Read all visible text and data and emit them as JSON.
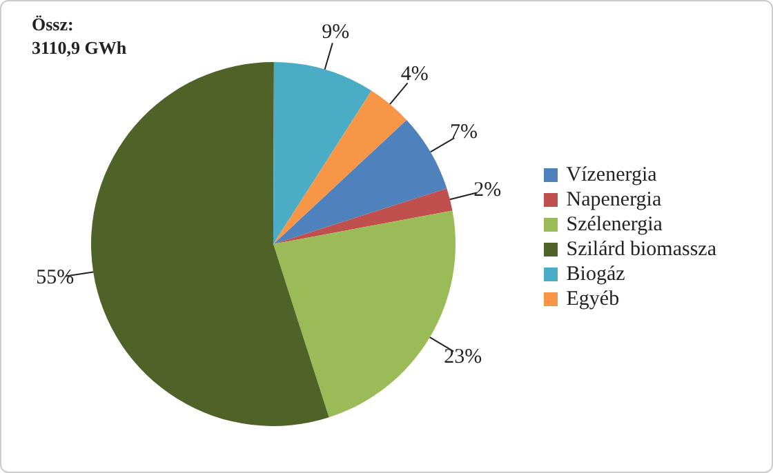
{
  "chart_data": {
    "type": "pie",
    "title": "Össz:",
    "subtitle": "3110,9 GWh",
    "categories": [
      "Vízenergia",
      "Napenergia",
      "Szélenergia",
      "Szilárd biomassza",
      "Biogáz",
      "Egyéb"
    ],
    "values": [
      7,
      2,
      23,
      55,
      9,
      4
    ],
    "colors": [
      "#4f81bd",
      "#c0504d",
      "#9bbb59",
      "#4f6228",
      "#4bacc6",
      "#f79646"
    ],
    "value_labels": [
      "7%",
      "2%",
      "23%",
      "55%",
      "9%",
      "4%"
    ],
    "legend": "right"
  }
}
